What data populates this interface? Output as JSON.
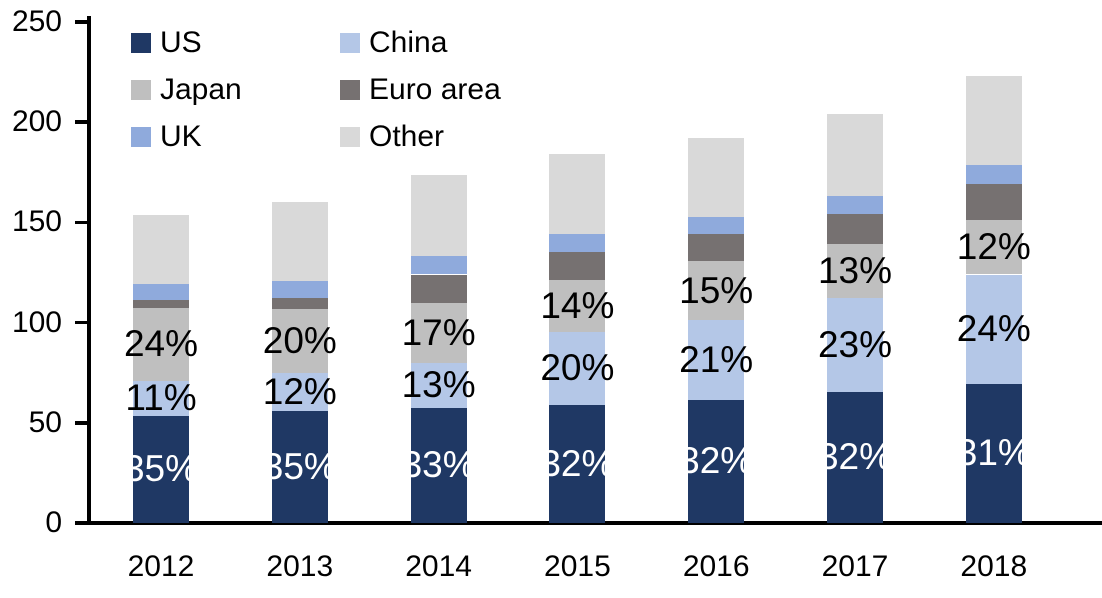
{
  "chart_data": {
    "type": "bar",
    "stacked": true,
    "title": "",
    "xlabel": "",
    "ylabel": "",
    "categories": [
      "2012",
      "2013",
      "2014",
      "2015",
      "2016",
      "2017",
      "2018"
    ],
    "series": [
      {
        "name": "US",
        "color": "#1F3864",
        "values": [
          53.5,
          56,
          57.5,
          59,
          61.5,
          65.5,
          69.5
        ],
        "labels": [
          "35%",
          "35%",
          "33%",
          "32%",
          "32%",
          "32%",
          "31%"
        ],
        "label_color": "#FFFFFF"
      },
      {
        "name": "China",
        "color": "#B4C7E7",
        "values": [
          17.5,
          19,
          22.5,
          36.5,
          40,
          47,
          54.5
        ],
        "labels": [
          "11%",
          "12%",
          "13%",
          "20%",
          "21%",
          "23%",
          "24%"
        ],
        "label_color": "#000000"
      },
      {
        "name": "Japan",
        "color": "#BFBFBF",
        "values": [
          36.5,
          32,
          30,
          26,
          29,
          26.5,
          27
        ],
        "labels": [
          "24%",
          "20%",
          "17%",
          "14%",
          "15%",
          "13%",
          "12%"
        ],
        "label_color": "#000000"
      },
      {
        "name": "Euro area",
        "color": "#767171",
        "values": [
          4,
          5.5,
          14,
          13.5,
          13.5,
          15,
          18
        ],
        "labels": null,
        "label_color": null
      },
      {
        "name": "UK",
        "color": "#8FAADC",
        "values": [
          8,
          8.5,
          9,
          9,
          8.5,
          9,
          9.5
        ],
        "labels": null,
        "label_color": null
      },
      {
        "name": "Other",
        "color": "#D9D9D9",
        "values": [
          34,
          39,
          40.5,
          40,
          39.5,
          41,
          44.5
        ],
        "labels": null,
        "label_color": null
      }
    ],
    "totals": [
      153.5,
      160,
      173.5,
      184,
      192,
      204,
      223
    ],
    "ylim": [
      0,
      250
    ],
    "yticks": [
      0,
      50,
      100,
      150,
      200,
      250
    ],
    "ytick_labels": [
      "0",
      "50",
      "100",
      "150",
      "200",
      "250"
    ],
    "grid": false,
    "legend_position": "top-left",
    "legend_columns": 2,
    "legend_order": [
      "US",
      "China",
      "Japan",
      "Euro area",
      "UK",
      "Other"
    ]
  },
  "colors": {
    "axis": "#000000",
    "background": "#FFFFFF",
    "us": "#1F3864",
    "china": "#B4C7E7",
    "japan": "#BFBFBF",
    "euro_area": "#767171",
    "uk": "#8FAADC",
    "other": "#D9D9D9"
  }
}
